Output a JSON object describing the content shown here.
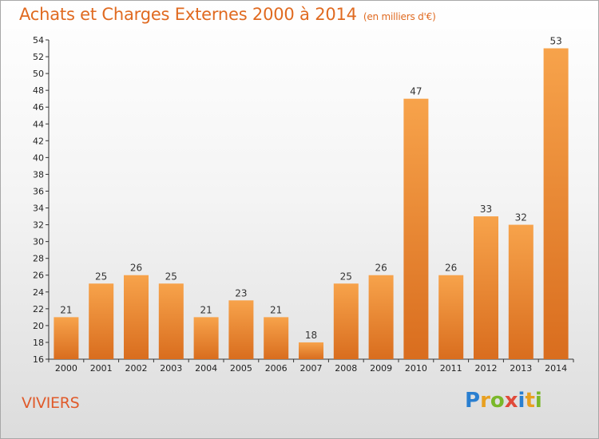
{
  "header": {
    "title": "Achats et Charges Externes 2000 à 2014",
    "unit": "(en milliers d'€)"
  },
  "footer": {
    "city": "VIVIERS",
    "brand": "Proxiti",
    "brand_colors": [
      "#2a7fd0",
      "#e8a020",
      "#7ab82a",
      "#e04a3a",
      "#2a7fd0",
      "#e8a020",
      "#7ab82a"
    ]
  },
  "colors": {
    "accent": "#e06a20",
    "bar_top": "#f7a34b",
    "bar_bottom": "#d96d1e"
  },
  "chart_data": {
    "type": "bar",
    "title": "Achats et Charges Externes 2000 à 2014",
    "categories": [
      "2000",
      "2001",
      "2002",
      "2003",
      "2004",
      "2005",
      "2006",
      "2007",
      "2008",
      "2009",
      "2010",
      "2011",
      "2012",
      "2013",
      "2014"
    ],
    "values": [
      21,
      25,
      26,
      25,
      21,
      23,
      21,
      18,
      25,
      26,
      47,
      26,
      33,
      32,
      53
    ],
    "ylim": [
      16,
      54
    ],
    "yticks": [
      16,
      18,
      20,
      22,
      24,
      26,
      28,
      30,
      32,
      34,
      36,
      38,
      40,
      42,
      44,
      46,
      48,
      50,
      52,
      54
    ],
    "grid": false,
    "legend": "none"
  }
}
